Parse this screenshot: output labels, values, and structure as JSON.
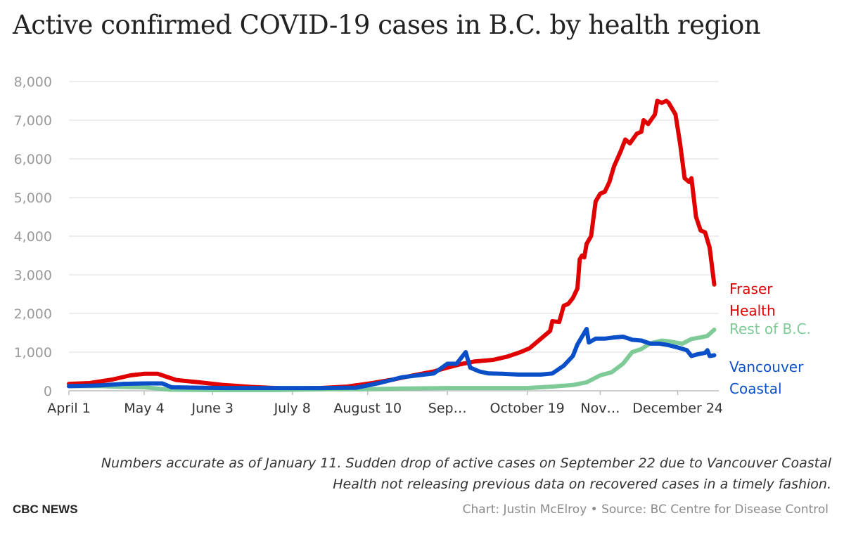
{
  "colors": {
    "fraser": "#e00000",
    "vancouver": "#0a4fc8",
    "rest": "#7fcb98",
    "grid": "#dcdcdc",
    "tick": "#9a9a9a"
  },
  "chart_data": {
    "type": "line",
    "title": "Active confirmed COVID-19 cases in B.C. by health region",
    "xlabel": "",
    "ylabel": "",
    "ylim": [
      0,
      8000
    ],
    "yticks": [
      0,
      1000,
      2000,
      3000,
      4000,
      5000,
      6000,
      7000,
      8000
    ],
    "ytick_labels": [
      "0",
      "1,000",
      "2,000",
      "3,000",
      "4,000",
      "5,000",
      "6,000",
      "7,000",
      "8,000"
    ],
    "xlim": [
      "2020-04-01",
      "2021-01-11"
    ],
    "xticks": [
      {
        "date": "2020-04-01",
        "label": "April 1"
      },
      {
        "date": "2020-05-04",
        "label": "May 4"
      },
      {
        "date": "2020-06-03",
        "label": "June 3"
      },
      {
        "date": "2020-07-08",
        "label": "July 8"
      },
      {
        "date": "2020-08-10",
        "label": "August 10"
      },
      {
        "date": "2020-09-14",
        "label": "Sep…"
      },
      {
        "date": "2020-10-19",
        "label": "October 19"
      },
      {
        "date": "2020-11-20",
        "label": "Nov…"
      },
      {
        "date": "2020-12-24",
        "label": "December 24"
      }
    ],
    "grid": true,
    "legend": "right, at line ends",
    "series": [
      {
        "name": "Fraser Health",
        "label_lines": [
          "Fraser",
          "Health"
        ],
        "color_key": "fraser",
        "points": [
          [
            "2020-04-01",
            180
          ],
          [
            "2020-04-10",
            200
          ],
          [
            "2020-04-20",
            290
          ],
          [
            "2020-04-28",
            400
          ],
          [
            "2020-05-04",
            440
          ],
          [
            "2020-05-10",
            440
          ],
          [
            "2020-05-13",
            380
          ],
          [
            "2020-05-18",
            280
          ],
          [
            "2020-05-28",
            220
          ],
          [
            "2020-06-08",
            150
          ],
          [
            "2020-06-20",
            100
          ],
          [
            "2020-07-05",
            60
          ],
          [
            "2020-07-20",
            70
          ],
          [
            "2020-08-01",
            110
          ],
          [
            "2020-08-12",
            200
          ],
          [
            "2020-08-22",
            300
          ],
          [
            "2020-08-30",
            400
          ],
          [
            "2020-09-08",
            500
          ],
          [
            "2020-09-14",
            600
          ],
          [
            "2020-09-20",
            690
          ],
          [
            "2020-09-26",
            760
          ],
          [
            "2020-10-04",
            800
          ],
          [
            "2020-10-10",
            880
          ],
          [
            "2020-10-16",
            1000
          ],
          [
            "2020-10-20",
            1100
          ],
          [
            "2020-10-25",
            1350
          ],
          [
            "2020-10-29",
            1550
          ],
          [
            "2020-10-30",
            1800
          ],
          [
            "2020-11-02",
            1780
          ],
          [
            "2020-11-04",
            2200
          ],
          [
            "2020-11-06",
            2250
          ],
          [
            "2020-11-08",
            2400
          ],
          [
            "2020-11-10",
            2650
          ],
          [
            "2020-11-11",
            3400
          ],
          [
            "2020-11-12",
            3500
          ],
          [
            "2020-11-13",
            3450
          ],
          [
            "2020-11-14",
            3800
          ],
          [
            "2020-11-16",
            4000
          ],
          [
            "2020-11-18",
            4900
          ],
          [
            "2020-11-20",
            5100
          ],
          [
            "2020-11-22",
            5150
          ],
          [
            "2020-11-24",
            5400
          ],
          [
            "2020-11-26",
            5800
          ],
          [
            "2020-11-29",
            6200
          ],
          [
            "2020-12-01",
            6500
          ],
          [
            "2020-12-03",
            6400
          ],
          [
            "2020-12-06",
            6650
          ],
          [
            "2020-12-08",
            6700
          ],
          [
            "2020-12-09",
            7000
          ],
          [
            "2020-12-11",
            6900
          ],
          [
            "2020-12-14",
            7150
          ],
          [
            "2020-12-15",
            7500
          ],
          [
            "2020-12-17",
            7450
          ],
          [
            "2020-12-19",
            7500
          ],
          [
            "2020-12-20",
            7450
          ],
          [
            "2020-12-23",
            7150
          ],
          [
            "2020-12-25",
            6400
          ],
          [
            "2020-12-27",
            5500
          ],
          [
            "2020-12-29",
            5400
          ],
          [
            "2020-12-30",
            5500
          ],
          [
            "2021-01-01",
            4500
          ],
          [
            "2021-01-03",
            4150
          ],
          [
            "2021-01-05",
            4100
          ],
          [
            "2021-01-07",
            3700
          ],
          [
            "2021-01-09",
            2750
          ]
        ]
      },
      {
        "name": "Rest of B.C.",
        "label_lines": [
          "Rest of B.C."
        ],
        "color_key": "rest",
        "points": [
          [
            "2020-04-01",
            120
          ],
          [
            "2020-04-15",
            120
          ],
          [
            "2020-04-25",
            100
          ],
          [
            "2020-05-04",
            90
          ],
          [
            "2020-05-15",
            30
          ],
          [
            "2020-06-01",
            20
          ],
          [
            "2020-07-01",
            20
          ],
          [
            "2020-07-25",
            40
          ],
          [
            "2020-08-10",
            40
          ],
          [
            "2020-08-25",
            60
          ],
          [
            "2020-09-15",
            70
          ],
          [
            "2020-10-01",
            70
          ],
          [
            "2020-10-19",
            70
          ],
          [
            "2020-10-30",
            110
          ],
          [
            "2020-11-08",
            150
          ],
          [
            "2020-11-14",
            220
          ],
          [
            "2020-11-20",
            400
          ],
          [
            "2020-11-25",
            480
          ],
          [
            "2020-11-30",
            700
          ],
          [
            "2020-12-04",
            1000
          ],
          [
            "2020-12-08",
            1080
          ],
          [
            "2020-12-12",
            1230
          ],
          [
            "2020-12-17",
            1300
          ],
          [
            "2020-12-20",
            1280
          ],
          [
            "2020-12-23",
            1250
          ],
          [
            "2020-12-26",
            1220
          ],
          [
            "2020-12-30",
            1340
          ],
          [
            "2021-01-03",
            1380
          ],
          [
            "2021-01-06",
            1420
          ],
          [
            "2021-01-09",
            1580
          ]
        ]
      },
      {
        "name": "Vancouver Coastal",
        "label_lines": [
          "Vancouver",
          "Coastal"
        ],
        "color_key": "vancouver",
        "points": [
          [
            "2020-04-01",
            120
          ],
          [
            "2020-04-15",
            140
          ],
          [
            "2020-04-25",
            180
          ],
          [
            "2020-05-04",
            190
          ],
          [
            "2020-05-12",
            190
          ],
          [
            "2020-05-16",
            90
          ],
          [
            "2020-05-28",
            80
          ],
          [
            "2020-06-10",
            70
          ],
          [
            "2020-07-01",
            70
          ],
          [
            "2020-07-20",
            70
          ],
          [
            "2020-08-05",
            80
          ],
          [
            "2020-08-15",
            200
          ],
          [
            "2020-08-25",
            350
          ],
          [
            "2020-09-01",
            400
          ],
          [
            "2020-09-08",
            450
          ],
          [
            "2020-09-14",
            700
          ],
          [
            "2020-09-18",
            700
          ],
          [
            "2020-09-20",
            850
          ],
          [
            "2020-09-22",
            1000
          ],
          [
            "2020-09-24",
            600
          ],
          [
            "2020-09-28",
            500
          ],
          [
            "2020-10-02",
            450
          ],
          [
            "2020-10-08",
            440
          ],
          [
            "2020-10-15",
            420
          ],
          [
            "2020-10-19",
            420
          ],
          [
            "2020-10-25",
            420
          ],
          [
            "2020-10-30",
            450
          ],
          [
            "2020-11-04",
            650
          ],
          [
            "2020-11-08",
            900
          ],
          [
            "2020-11-10",
            1200
          ],
          [
            "2020-11-12",
            1400
          ],
          [
            "2020-11-14",
            1600
          ],
          [
            "2020-11-15",
            1250
          ],
          [
            "2020-11-18",
            1350
          ],
          [
            "2020-11-22",
            1350
          ],
          [
            "2020-11-26",
            1380
          ],
          [
            "2020-11-30",
            1400
          ],
          [
            "2020-12-04",
            1320
          ],
          [
            "2020-12-08",
            1300
          ],
          [
            "2020-12-12",
            1220
          ],
          [
            "2020-12-16",
            1220
          ],
          [
            "2020-12-20",
            1180
          ],
          [
            "2020-12-24",
            1120
          ],
          [
            "2020-12-28",
            1050
          ],
          [
            "2020-12-30",
            900
          ],
          [
            "2021-01-02",
            950
          ],
          [
            "2021-01-05",
            980
          ],
          [
            "2021-01-06",
            1050
          ],
          [
            "2021-01-07",
            900
          ],
          [
            "2021-01-09",
            920
          ]
        ]
      }
    ]
  },
  "note_line1": "Numbers accurate as of January 11. Sudden drop of active cases on September 22 due to Vancouver Coastal",
  "note_line2": "Health not releasing previous data on recovered cases in a timely fashion.",
  "brand": "CBC NEWS",
  "credit": "Chart: Justin McElroy • Source: BC Centre for Disease Control"
}
